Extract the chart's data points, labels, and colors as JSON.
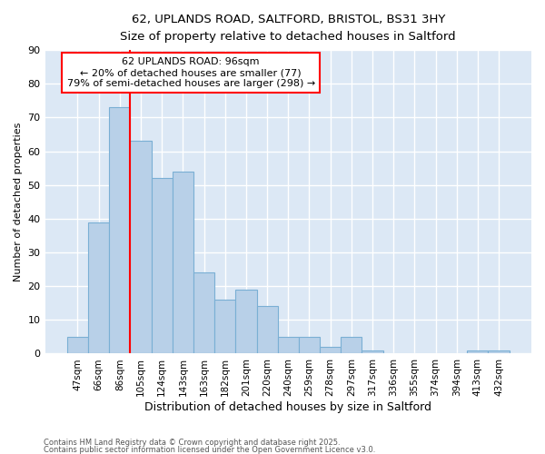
{
  "title1": "62, UPLANDS ROAD, SALTFORD, BRISTOL, BS31 3HY",
  "title2": "Size of property relative to detached houses in Saltford",
  "xlabel": "Distribution of detached houses by size in Saltford",
  "ylabel": "Number of detached properties",
  "categories": [
    "47sqm",
    "66sqm",
    "86sqm",
    "105sqm",
    "124sqm",
    "143sqm",
    "163sqm",
    "182sqm",
    "201sqm",
    "220sqm",
    "240sqm",
    "259sqm",
    "278sqm",
    "297sqm",
    "317sqm",
    "336sqm",
    "355sqm",
    "374sqm",
    "394sqm",
    "413sqm",
    "432sqm"
  ],
  "values": [
    5,
    39,
    73,
    63,
    52,
    54,
    24,
    16,
    19,
    14,
    5,
    5,
    2,
    5,
    1,
    0,
    0,
    0,
    0,
    1,
    1
  ],
  "bar_color": "#b8d0e8",
  "bar_edgecolor": "#7aafd4",
  "vline_x_idx": 2,
  "vline_color": "red",
  "annotation_text": "62 UPLANDS ROAD: 96sqm\n← 20% of detached houses are smaller (77)\n79% of semi-detached houses are larger (298) →",
  "annotation_box_color": "white",
  "annotation_box_edgecolor": "red",
  "ylim": [
    0,
    90
  ],
  "yticks": [
    0,
    10,
    20,
    30,
    40,
    50,
    60,
    70,
    80,
    90
  ],
  "bg_color": "#dce8f5",
  "grid_color": "#c5d8ee",
  "footer1": "Contains HM Land Registry data © Crown copyright and database right 2025.",
  "footer2": "Contains public sector information licensed under the Open Government Licence v3.0."
}
